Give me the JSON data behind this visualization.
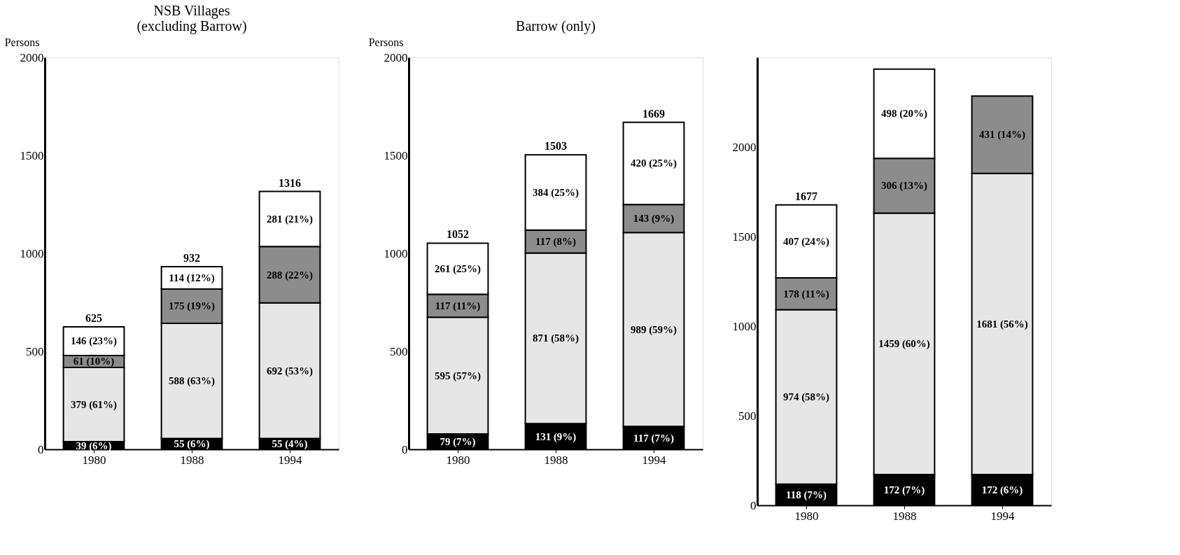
{
  "chart_data": [
    {
      "type": "bar",
      "stacked": true,
      "title": "NSB Villages\n(excluding Barrow)",
      "ylabel": "Persons",
      "categories": [
        "1980",
        "1988",
        "1994"
      ],
      "ylim": [
        0,
        2000
      ],
      "yticks": [
        0,
        500,
        1000,
        1500,
        2000
      ],
      "grid": false,
      "totals": [
        "625",
        "932",
        "1316"
      ],
      "series": [
        {
          "color": "#000000",
          "values": [
            39,
            55,
            55
          ],
          "value_labels": [
            "39 (6%)",
            "55 (6%)",
            "55 (4%)"
          ]
        },
        {
          "color": "#e6e6e6",
          "values": [
            379,
            588,
            692
          ],
          "value_labels": [
            "379 (61%)",
            "588 (63%)",
            "692 (53%)"
          ]
        },
        {
          "color": "#8c8c8c",
          "values": [
            61,
            175,
            288
          ],
          "value_labels": [
            "61 (10%)",
            "175 (19%)",
            "288 (22%)"
          ]
        },
        {
          "color": "#ffffff",
          "values": [
            146,
            114,
            281
          ],
          "value_labels": [
            "146 (23%)",
            "114 (12%)",
            "281 (21%)"
          ]
        }
      ]
    },
    {
      "type": "bar",
      "stacked": true,
      "title": "Barrow (only)",
      "ylabel": "Persons",
      "categories": [
        "1980",
        "1988",
        "1994"
      ],
      "ylim": [
        0,
        2000
      ],
      "yticks": [
        0,
        500,
        1000,
        1500,
        2000
      ],
      "grid": false,
      "totals": [
        "1052",
        "1503",
        "1669"
      ],
      "series": [
        {
          "color": "#000000",
          "values": [
            79,
            131,
            117
          ],
          "value_labels": [
            "79 (7%)",
            "131 (9%)",
            "117 (7%)"
          ]
        },
        {
          "color": "#e6e6e6",
          "values": [
            595,
            871,
            989
          ],
          "value_labels": [
            "595 (57%)",
            "871 (58%)",
            "989 (59%)"
          ]
        },
        {
          "color": "#8c8c8c",
          "values": [
            117,
            117,
            143
          ],
          "value_labels": [
            "117 (11%)",
            "117 (8%)",
            "143 (9%)"
          ]
        },
        {
          "color": "#ffffff",
          "values": [
            261,
            384,
            420
          ],
          "value_labels": [
            "261 (25%)",
            "384 (25%)",
            "420 (25%)"
          ]
        }
      ]
    },
    {
      "type": "bar",
      "stacked": true,
      "categories": [
        "1980",
        "1988",
        "1994"
      ],
      "ylim": [
        0,
        2500
      ],
      "yticks": [
        0,
        500,
        1000,
        1500,
        2000
      ],
      "grid": false,
      "totals": [
        "1677",
        null,
        null
      ],
      "series": [
        {
          "color": "#000000",
          "values": [
            118,
            172,
            172
          ],
          "value_labels": [
            "118 (7%)",
            "172 (7%)",
            "172 (6%)"
          ]
        },
        {
          "color": "#e6e6e6",
          "values": [
            974,
            1459,
            1681
          ],
          "value_labels": [
            "974 (58%)",
            "1459 (60%)",
            "1681 (56%)"
          ]
        },
        {
          "color": "#8c8c8c",
          "values": [
            178,
            306,
            431
          ],
          "value_labels": [
            "178 (11%)",
            "306 (13%)",
            "431 (14%)"
          ]
        },
        {
          "color": "#ffffff",
          "values": [
            407,
            498,
            null
          ],
          "value_labels": [
            "407 (24%)",
            "498 (20%)",
            null
          ]
        }
      ]
    }
  ]
}
